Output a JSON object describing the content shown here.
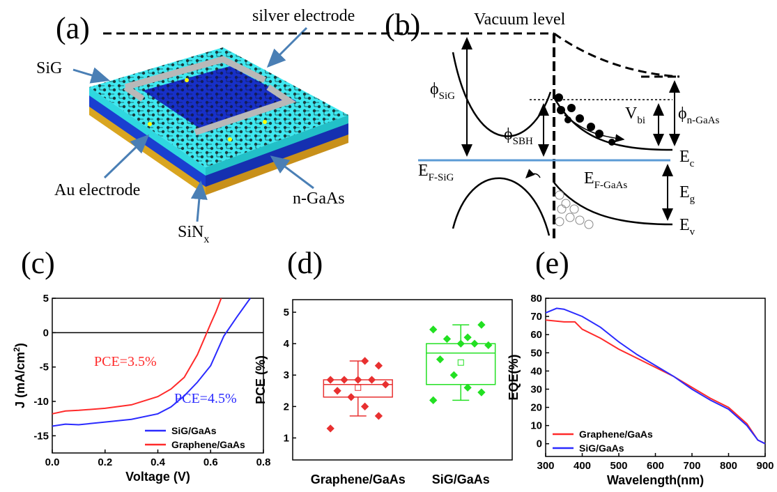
{
  "panel_a": {
    "label": "(a)",
    "silver": "silver electrode",
    "sig": "SiG",
    "au": "Au electrode",
    "gaas": "n-GaAs",
    "sin": {
      "main": "SiN",
      "sub": "x"
    }
  },
  "panel_b": {
    "label": "(b)",
    "vacuum": "Vacuum level",
    "phi_sig": {
      "main": "ϕ",
      "sub": "SiG"
    },
    "phi_sbh": {
      "main": "ϕ",
      "sub": "SBH"
    },
    "vbi": {
      "main": "V",
      "sub": "bi"
    },
    "phi_gaas": {
      "main": "ϕ",
      "sub": "n-GaAs"
    },
    "ec": {
      "main": "E",
      "sub": "c"
    },
    "ef_sig": {
      "main": "E",
      "sub": "F-SiG"
    },
    "ef_gaas": {
      "main": "E",
      "sub": "F-GaAs"
    },
    "eg": {
      "main": "E",
      "sub": "g"
    },
    "ev": {
      "main": "E",
      "sub": "v"
    }
  },
  "chart_data": [
    {
      "type": "line",
      "panel_label": "(c)",
      "xlabel": "Voltage (V)",
      "ylabel": {
        "text": "J (mA/cm",
        "sup": "2",
        "end": ")"
      },
      "xlim": [
        0,
        0.8
      ],
      "xticks": [
        {
          "value": 0,
          "label": "0.0"
        },
        0.2,
        0.4,
        0.6,
        0.8
      ],
      "ylim": [
        -17.5,
        5
      ],
      "yticks": [
        -15,
        -10,
        -5,
        0,
        5
      ],
      "annotations": [
        "PCE=3.5%",
        "PCE=4.5%"
      ],
      "legend": "lower right",
      "series": [
        {
          "name": "SiG/GaAs",
          "color": "#2a2aff",
          "x": [
            0,
            0.05,
            0.1,
            0.2,
            0.3,
            0.4,
            0.45,
            0.5,
            0.55,
            0.6,
            0.65,
            0.7,
            0.75
          ],
          "values": [
            -13.6,
            -13.3,
            -13.4,
            -13.0,
            -12.6,
            -11.8,
            -10.8,
            -9.2,
            -7.2,
            -4.8,
            -0.5,
            2.3,
            5
          ]
        },
        {
          "name": "Graphene/GaAs",
          "color": "#ff2a2a",
          "x": [
            0,
            0.05,
            0.1,
            0.2,
            0.3,
            0.4,
            0.45,
            0.5,
            0.55,
            0.58,
            0.6,
            0.62,
            0.64
          ],
          "values": [
            -11.8,
            -11.4,
            -11.3,
            -11.0,
            -10.5,
            -9.3,
            -8.2,
            -6.5,
            -3.2,
            -0.5,
            1.3,
            3.0,
            5
          ]
        }
      ]
    },
    {
      "type": "box",
      "panel_label": "(d)",
      "ylabel": "PCE (%)",
      "categories": [
        "Graphene/GaAs",
        "SiG/GaAs"
      ],
      "ylim": [
        0.3,
        5.4
      ],
      "yticks": [
        1,
        2,
        3,
        4,
        5
      ],
      "boxes": [
        {
          "color": "#e83030",
          "q1": 2.3,
          "median": 2.7,
          "q3": 2.85,
          "whisker_low": 1.7,
          "whisker_high": 3.45,
          "mean": 2.6,
          "points": [
            1.3,
            1.7,
            2.0,
            2.3,
            2.5,
            2.7,
            2.85,
            2.85,
            2.85,
            2.85,
            3.3,
            3.45
          ]
        },
        {
          "color": "#22e022",
          "q1": 2.7,
          "median": 3.7,
          "q3": 4.0,
          "whisker_low": 2.2,
          "whisker_high": 4.6,
          "mean": 3.4,
          "points": [
            2.2,
            2.45,
            2.6,
            3.0,
            3.5,
            3.95,
            4.0,
            4.0,
            4.15,
            4.45,
            4.6,
            4.2
          ]
        }
      ]
    },
    {
      "type": "line",
      "panel_label": "(e)",
      "xlabel": "Wavelength(nm)",
      "ylabel": {
        "text": "EQE(%)"
      },
      "xlim": [
        300,
        900
      ],
      "xticks": [
        300,
        400,
        500,
        600,
        700,
        800,
        900
      ],
      "ylim": [
        -7,
        80
      ],
      "yticks": [
        0,
        10,
        20,
        30,
        40,
        50,
        60,
        70,
        80
      ],
      "legend": "lower left",
      "series": [
        {
          "name": "Graphene/GaAs",
          "color": "#ff2a2a",
          "x": [
            300,
            350,
            380,
            400,
            450,
            500,
            550,
            600,
            650,
            700,
            750,
            800,
            850,
            880,
            900
          ],
          "values": [
            68,
            67,
            67,
            63,
            58,
            52,
            47,
            42,
            37,
            31,
            25,
            20,
            11,
            2,
            0
          ]
        },
        {
          "name": "SiG/GaAs",
          "color": "#2a2aff",
          "x": [
            300,
            330,
            350,
            400,
            450,
            500,
            550,
            600,
            650,
            700,
            750,
            800,
            850,
            880,
            900
          ],
          "values": [
            72,
            74.5,
            74,
            70,
            64,
            56,
            49,
            43,
            37,
            30,
            24,
            19,
            10,
            2,
            0
          ]
        }
      ]
    }
  ]
}
